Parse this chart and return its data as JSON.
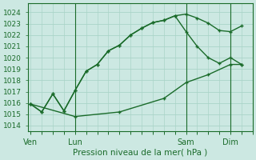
{
  "background_color": "#cce8e2",
  "grid_color": "#aad4c8",
  "line_color": "#1a6b2a",
  "xlabel": "Pression niveau de la mer( hPa )",
  "x_tick_positions": [
    0,
    16,
    56,
    72
  ],
  "x_tick_labels": [
    "Ven",
    "Lun",
    "Sam",
    "Dim"
  ],
  "yticks": [
    1014,
    1015,
    1016,
    1017,
    1018,
    1019,
    1020,
    1021,
    1022,
    1023,
    1024
  ],
  "ylim": [
    1013.5,
    1024.8
  ],
  "xlim": [
    -1,
    80
  ],
  "vlines_x": [
    16,
    56,
    72
  ],
  "line1_x": [
    0,
    4,
    8,
    12,
    16,
    20,
    24,
    28,
    32,
    36,
    40,
    44,
    48,
    52,
    56,
    60,
    64,
    68,
    72,
    76
  ],
  "line1_y": [
    1015.9,
    1015.2,
    1016.8,
    1015.3,
    1017.1,
    1018.8,
    1019.4,
    1020.6,
    1021.1,
    1022.0,
    1022.6,
    1023.1,
    1023.3,
    1023.7,
    1023.85,
    1023.5,
    1023.05,
    1022.4,
    1022.3,
    1022.8
  ],
  "line2_x": [
    0,
    4,
    8,
    12,
    16,
    20,
    24,
    28,
    32,
    36,
    40,
    44,
    48,
    52,
    56,
    60,
    64,
    68,
    72,
    76
  ],
  "line2_y": [
    1015.9,
    1015.2,
    1016.8,
    1015.3,
    1017.1,
    1018.8,
    1019.4,
    1020.6,
    1021.1,
    1022.0,
    1022.6,
    1023.1,
    1023.3,
    1023.7,
    1022.3,
    1021.0,
    1020.0,
    1019.5,
    1020.0,
    1019.4
  ],
  "line3_x": [
    0,
    16,
    32,
    48,
    56,
    64,
    72,
    76
  ],
  "line3_y": [
    1015.9,
    1014.8,
    1015.2,
    1016.4,
    1017.8,
    1018.5,
    1019.4,
    1019.4
  ]
}
